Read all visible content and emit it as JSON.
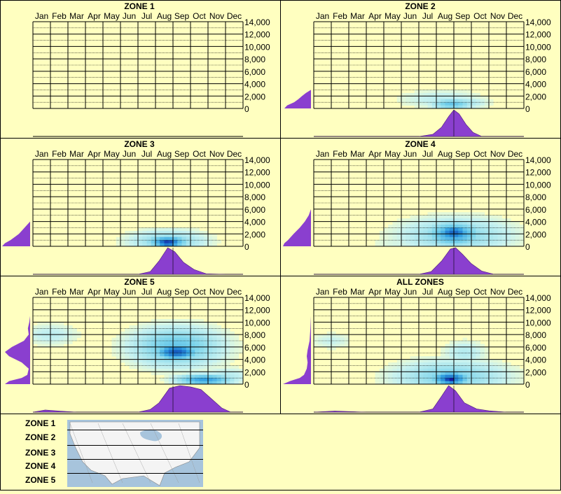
{
  "chart_data": [
    {
      "type": "heatmap",
      "title": "ZONE 1",
      "months": [
        "Jan",
        "Feb",
        "Mar",
        "Apr",
        "May",
        "Jun",
        "Jul",
        "Aug",
        "Sep",
        "Oct",
        "Nov",
        "Dec"
      ],
      "yticks": [
        "14,000",
        "12,000",
        "10,000",
        "8,000",
        "6,000",
        "4,000",
        "2,000",
        "0"
      ],
      "ylim": [
        0,
        14000
      ],
      "cells": [],
      "elevation_profile": [],
      "month_profile": []
    },
    {
      "type": "heatmap",
      "title": "ZONE 2",
      "months": [
        "Jan",
        "Feb",
        "Mar",
        "Apr",
        "May",
        "Jun",
        "Jul",
        "Aug",
        "Sep",
        "Oct",
        "Nov",
        "Dec"
      ],
      "yticks": [
        "14,000",
        "12,000",
        "10,000",
        "8,000",
        "6,000",
        "4,000",
        "2,000",
        "0"
      ],
      "ylim": [
        0,
        14000
      ],
      "cells": [
        {
          "m": 7.3,
          "e": 1500,
          "i": 0.15,
          "r": [
            2.5,
            1500
          ]
        },
        {
          "m": 7.9,
          "e": 700,
          "i": 0.4,
          "r": [
            1.2,
            900
          ]
        },
        {
          "m": 8.2,
          "e": 900,
          "i": 0.25,
          "r": [
            1.6,
            1000
          ]
        }
      ],
      "elevation_profile": [
        [
          0,
          0.95
        ],
        [
          500,
          0.85
        ],
        [
          1000,
          0.6
        ],
        [
          1500,
          0.45
        ],
        [
          2000,
          0.32
        ],
        [
          2500,
          0.18
        ],
        [
          3000,
          0
        ],
        [
          14000,
          0
        ]
      ],
      "month_profile": [
        [
          6,
          0
        ],
        [
          6.8,
          0.08
        ],
        [
          7.3,
          0.35
        ],
        [
          7.7,
          0.75
        ],
        [
          8,
          1
        ],
        [
          8.3,
          0.85
        ],
        [
          8.7,
          0.45
        ],
        [
          9.1,
          0.15
        ],
        [
          9.6,
          0
        ],
        [
          12,
          0
        ]
      ]
    },
    {
      "type": "heatmap",
      "title": "ZONE 3",
      "months": [
        "Jan",
        "Feb",
        "Mar",
        "Apr",
        "May",
        "Jun",
        "Jul",
        "Aug",
        "Sep",
        "Oct",
        "Nov",
        "Dec"
      ],
      "yticks": [
        "14,000",
        "12,000",
        "10,000",
        "8,000",
        "6,000",
        "4,000",
        "2,000",
        "0"
      ],
      "ylim": [
        0,
        14000
      ],
      "cells": [
        {
          "m": 7.7,
          "e": 800,
          "i": 0.3,
          "r": [
            2.2,
            1800
          ]
        },
        {
          "m": 7.7,
          "e": 700,
          "i": 0.6,
          "r": [
            1.2,
            1100
          ]
        },
        {
          "m": 7.7,
          "e": 600,
          "i": 0.85,
          "r": [
            0.8,
            700
          ]
        },
        {
          "m": 7.7,
          "e": 500,
          "i": 1.0,
          "r": [
            0.5,
            400
          ]
        }
      ],
      "elevation_profile": [
        [
          0,
          1
        ],
        [
          500,
          0.9
        ],
        [
          1000,
          0.7
        ],
        [
          1500,
          0.55
        ],
        [
          2000,
          0.4
        ],
        [
          2500,
          0.3
        ],
        [
          3500,
          0.1
        ],
        [
          4000,
          0
        ],
        [
          14000,
          0
        ]
      ],
      "month_profile": [
        [
          6,
          0
        ],
        [
          6.7,
          0.1
        ],
        [
          7.2,
          0.5
        ],
        [
          7.7,
          1
        ],
        [
          8.1,
          0.85
        ],
        [
          8.6,
          0.45
        ],
        [
          9.2,
          0.18
        ],
        [
          9.9,
          0.02
        ],
        [
          11,
          0
        ],
        [
          12,
          0
        ]
      ]
    },
    {
      "type": "heatmap",
      "title": "ZONE 4",
      "months": [
        "Jan",
        "Feb",
        "Mar",
        "Apr",
        "May",
        "Jun",
        "Jul",
        "Aug",
        "Sep",
        "Oct",
        "Nov",
        "Dec"
      ],
      "yticks": [
        "14,000",
        "12,000",
        "10,000",
        "8,000",
        "6,000",
        "4,000",
        "2,000",
        "0"
      ],
      "ylim": [
        0,
        14000
      ],
      "cells": [
        {
          "m": 8.1,
          "e": 1800,
          "i": 0.3,
          "r": [
            3.2,
            2800
          ]
        },
        {
          "m": 8.0,
          "e": 2000,
          "i": 0.55,
          "r": [
            1.6,
            2000
          ]
        },
        {
          "m": 8.0,
          "e": 2200,
          "i": 0.72,
          "r": [
            1.0,
            1300
          ]
        },
        {
          "m": 5.5,
          "e": 500,
          "i": 0.12,
          "r": [
            2.5,
            600
          ]
        }
      ],
      "elevation_profile": [
        [
          0,
          1
        ],
        [
          500,
          0.95
        ],
        [
          1000,
          0.82
        ],
        [
          2000,
          0.62
        ],
        [
          3000,
          0.4
        ],
        [
          4000,
          0.22
        ],
        [
          5000,
          0.08
        ],
        [
          6000,
          0
        ],
        [
          14000,
          0
        ]
      ],
      "month_profile": [
        [
          6,
          0
        ],
        [
          6.7,
          0.1
        ],
        [
          7.3,
          0.5
        ],
        [
          7.8,
          0.95
        ],
        [
          8.1,
          1
        ],
        [
          8.5,
          0.75
        ],
        [
          9,
          0.4
        ],
        [
          9.6,
          0.12
        ],
        [
          10.3,
          0
        ],
        [
          12,
          0
        ]
      ]
    },
    {
      "type": "heatmap",
      "title": "ZONE 5",
      "months": [
        "Jan",
        "Feb",
        "Mar",
        "Apr",
        "May",
        "Jun",
        "Jul",
        "Aug",
        "Sep",
        "Oct",
        "Nov",
        "Dec"
      ],
      "yticks": [
        "14,000",
        "12,000",
        "10,000",
        "8,000",
        "6,000",
        "4,000",
        "2,000",
        "0"
      ],
      "ylim": [
        0,
        14000
      ],
      "cells": [
        {
          "m": 8.2,
          "e": 6000,
          "i": 0.4,
          "r": [
            2.6,
            3200
          ]
        },
        {
          "m": 8.2,
          "e": 5200,
          "i": 0.75,
          "r": [
            1.2,
            1300
          ]
        },
        {
          "m": 9.8,
          "e": 700,
          "i": 0.55,
          "r": [
            1.6,
            900
          ]
        },
        {
          "m": 1.0,
          "e": 8000,
          "i": 0.15,
          "r": [
            1.6,
            1800
          ]
        },
        {
          "m": 11.0,
          "e": 1200,
          "i": 0.18,
          "r": [
            1.5,
            1500
          ]
        }
      ],
      "elevation_profile": [
        [
          0,
          0.9
        ],
        [
          500,
          0.75
        ],
        [
          1000,
          0.3
        ],
        [
          1500,
          0.1
        ],
        [
          2500,
          0.05
        ],
        [
          3500,
          0.3
        ],
        [
          4500,
          0.75
        ],
        [
          5200,
          0.9
        ],
        [
          6000,
          0.65
        ],
        [
          7000,
          0.22
        ],
        [
          8000,
          0.05
        ],
        [
          9000,
          0.08
        ],
        [
          10000,
          0.03
        ],
        [
          11000,
          0
        ],
        [
          14000,
          0
        ]
      ],
      "month_profile": [
        [
          0,
          0
        ],
        [
          0.7,
          0.08
        ],
        [
          1.5,
          0.04
        ],
        [
          2.5,
          0
        ],
        [
          6,
          0
        ],
        [
          6.7,
          0.1
        ],
        [
          7.2,
          0.35
        ],
        [
          7.8,
          0.9
        ],
        [
          8.4,
          1
        ],
        [
          9,
          0.95
        ],
        [
          9.6,
          0.85
        ],
        [
          10.2,
          0.5
        ],
        [
          10.8,
          0.15
        ],
        [
          11.3,
          0
        ],
        [
          12,
          0
        ]
      ]
    },
    {
      "type": "heatmap",
      "title": "ALL ZONES",
      "months": [
        "Jan",
        "Feb",
        "Mar",
        "Apr",
        "May",
        "Jun",
        "Jul",
        "Aug",
        "Sep",
        "Oct",
        "Nov",
        "Dec"
      ],
      "yticks": [
        "14,000",
        "12,000",
        "10,000",
        "8,000",
        "6,000",
        "4,000",
        "2,000",
        "0"
      ],
      "ylim": [
        0,
        14000
      ],
      "cells": [
        {
          "m": 7.8,
          "e": 1200,
          "i": 0.32,
          "r": [
            3.2,
            2600
          ]
        },
        {
          "m": 7.8,
          "e": 900,
          "i": 0.7,
          "r": [
            1.1,
            1200
          ]
        },
        {
          "m": 7.8,
          "e": 600,
          "i": 1.0,
          "r": [
            0.45,
            500
          ]
        },
        {
          "m": 8.6,
          "e": 5000,
          "i": 0.18,
          "r": [
            1.2,
            2000
          ]
        },
        {
          "m": 1.0,
          "e": 7000,
          "i": 0.12,
          "r": [
            1.2,
            1400
          ]
        }
      ],
      "elevation_profile": [
        [
          0,
          1
        ],
        [
          500,
          0.75
        ],
        [
          1000,
          0.4
        ],
        [
          1500,
          0.25
        ],
        [
          2500,
          0.15
        ],
        [
          3500,
          0.12
        ],
        [
          4500,
          0.15
        ],
        [
          5500,
          0.12
        ],
        [
          7000,
          0.05
        ],
        [
          9000,
          0.02
        ],
        [
          11000,
          0
        ],
        [
          14000,
          0
        ]
      ],
      "month_profile": [
        [
          0,
          0
        ],
        [
          1.2,
          0.04
        ],
        [
          3,
          0
        ],
        [
          6,
          0
        ],
        [
          6.8,
          0.12
        ],
        [
          7.3,
          0.6
        ],
        [
          7.7,
          1
        ],
        [
          8.1,
          0.8
        ],
        [
          8.6,
          0.35
        ],
        [
          9.3,
          0.12
        ],
        [
          10,
          0.05
        ],
        [
          11,
          0
        ],
        [
          12,
          0
        ]
      ]
    }
  ],
  "legend": {
    "zones": [
      "ZONE 1",
      "ZONE 2",
      "ZONE 3",
      "ZONE 4",
      "ZONE 5"
    ]
  },
  "colors": {
    "background": "#ffffc0",
    "profile_fill": "#8a3fcf",
    "grid": "#000000",
    "heat_low": "#bef0f0",
    "heat_mid": "#3aa6e0",
    "heat_high": "#1020a0",
    "heat_peak": "#e0208c"
  }
}
